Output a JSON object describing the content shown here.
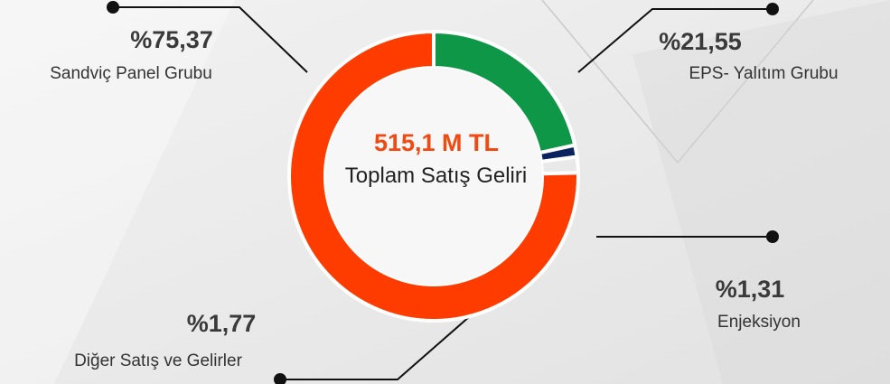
{
  "chart_data": {
    "type": "donut",
    "center_value": "515,1 M TL",
    "center_label": "Toplam Satış Geliri",
    "categories": [
      "EPS- Yalıtım Grubu",
      "Enjeksiyon",
      "Diğer Satış ve Gelirler",
      "Sandviç Panel Grubu"
    ],
    "values": [
      21.55,
      1.31,
      1.77,
      75.37
    ],
    "value_labels": [
      "%21,55",
      "%1,31",
      "%1,77",
      "%75,37"
    ],
    "colors": [
      "#0e9746",
      "#0b2260",
      "#e9e9e9",
      "#ff3c00"
    ]
  }
}
